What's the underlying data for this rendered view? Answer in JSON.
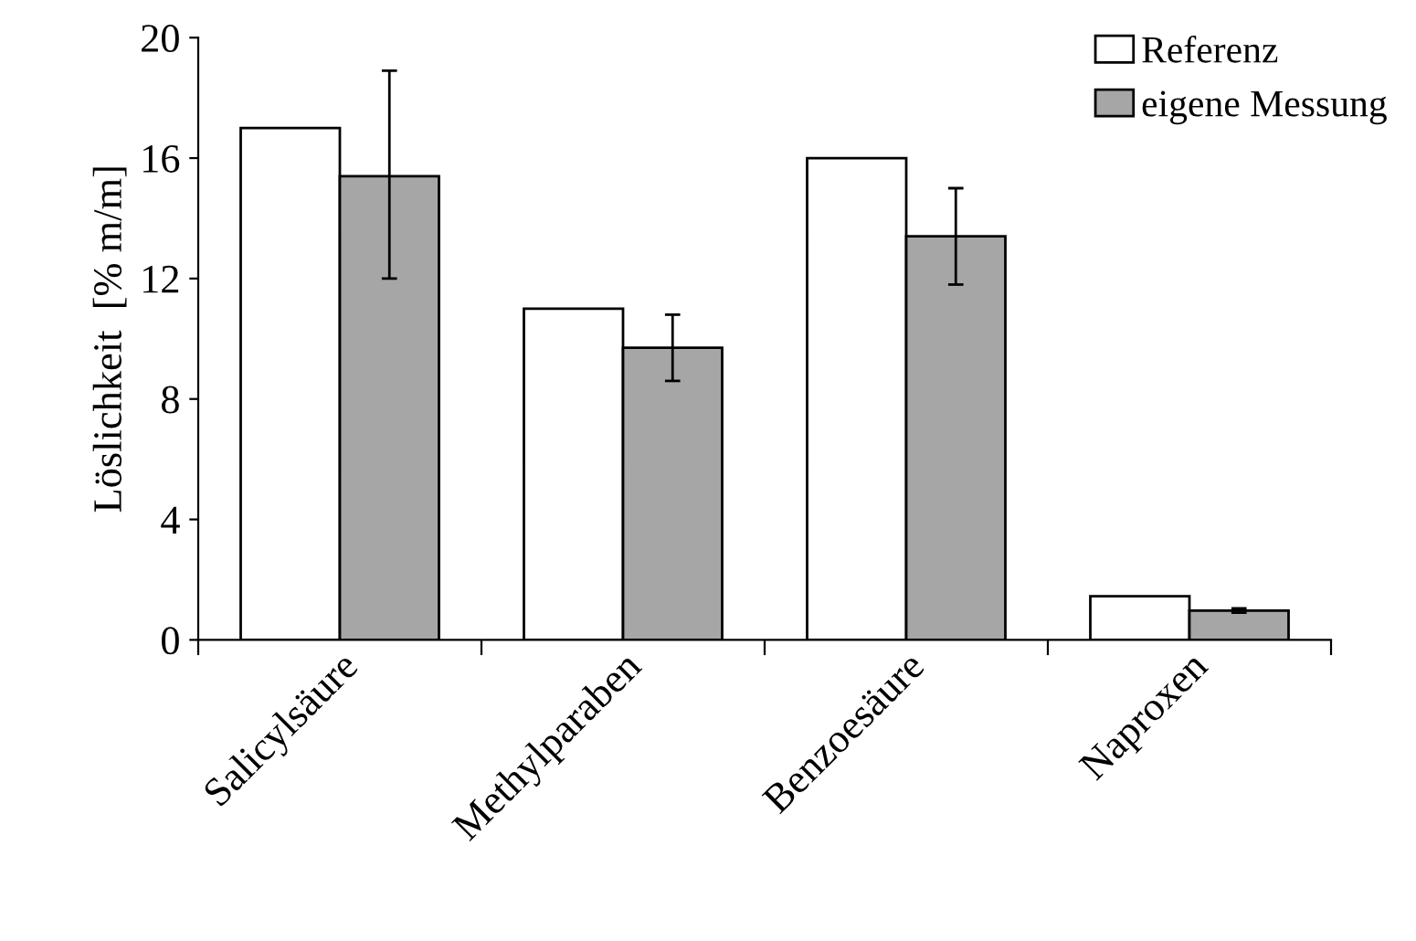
{
  "chart_data": {
    "type": "bar",
    "ylabel": "Löslichkeit  [% m/m]",
    "categories": [
      "Salicylsäure",
      "Methylparaben",
      "Benzoesäure",
      "Naproxen"
    ],
    "series": [
      {
        "name": "Referenz",
        "color": "#ffffff",
        "values": [
          17,
          11,
          16,
          1.45
        ]
      },
      {
        "name": "eigene Messung",
        "color": "#a6a6a6",
        "values": [
          15.4,
          9.7,
          13.4,
          0.97
        ],
        "errors": [
          [
            12.0,
            18.9
          ],
          [
            8.6,
            10.8
          ],
          [
            11.8,
            15.0
          ],
          [
            0.9,
            1.05
          ]
        ]
      }
    ],
    "ylim": [
      0,
      20
    ],
    "yticks": [
      0,
      4,
      8,
      12,
      16,
      20
    ],
    "grid": false,
    "legend": "top right"
  }
}
